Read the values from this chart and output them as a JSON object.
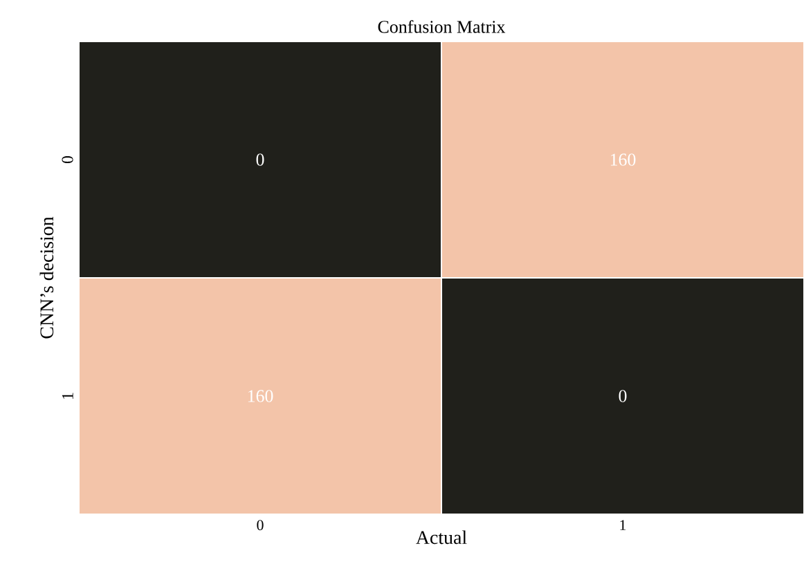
{
  "chart_data": {
    "type": "heatmap",
    "title": "Confusion Matrix",
    "xlabel": "Actual",
    "ylabel": "CNN’s decision",
    "categories": [
      "0",
      "1"
    ],
    "y_categories": [
      "0",
      "1"
    ],
    "cells": [
      [
        0,
        160
      ],
      [
        160,
        0
      ]
    ],
    "colors": [
      "#20201b",
      "#f3c4a9",
      "#f3c4a9",
      "#20201b"
    ],
    "data_labels": true
  }
}
